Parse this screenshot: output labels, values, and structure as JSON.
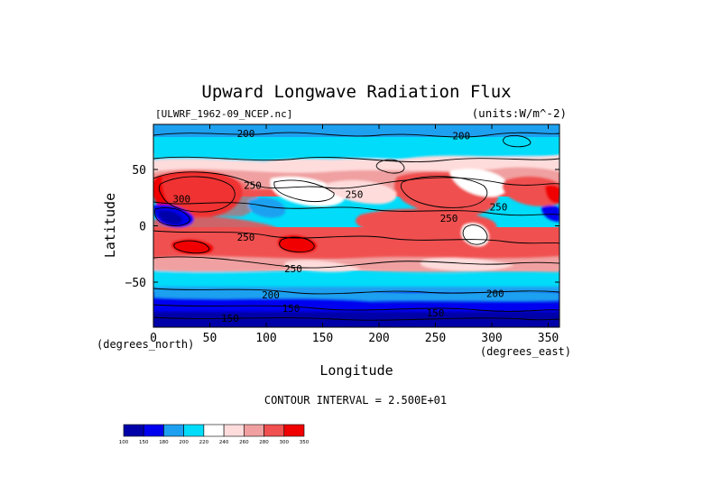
{
  "chart_data": {
    "type": "heatmap",
    "title": "Upward Longwave Radiation Flux",
    "subtitle_left": "[ULWRF_1962-09_NCEP.nc]",
    "subtitle_right": "(units:W/m^-2)",
    "xlabel": "Longitude",
    "ylabel": "Latitude",
    "x_units": "(degrees_east)",
    "y_units": "(degrees_north)",
    "xlim": [
      0,
      360
    ],
    "ylim": [
      -90,
      90
    ],
    "x_ticks": [
      0,
      50,
      100,
      150,
      200,
      250,
      300,
      350
    ],
    "x_tick_labels": [
      "0",
      "50",
      "100",
      "150",
      "200",
      "250",
      "300",
      "350"
    ],
    "y_ticks": [
      50,
      0,
      -50
    ],
    "y_tick_labels": [
      "50",
      "0",
      "−50"
    ],
    "contour_interval_text": "CONTOUR INTERVAL = 2.500E+01",
    "contour_labels": [
      {
        "lon": 82,
        "lat": 82,
        "text": "200"
      },
      {
        "lon": 273,
        "lat": 80,
        "text": "200"
      },
      {
        "lon": 88,
        "lat": 36,
        "text": "250"
      },
      {
        "lon": 25,
        "lat": 24,
        "text": "300"
      },
      {
        "lon": 178,
        "lat": 28,
        "text": "250"
      },
      {
        "lon": 262,
        "lat": 7,
        "text": "250"
      },
      {
        "lon": 306,
        "lat": 17,
        "text": "250"
      },
      {
        "lon": 82,
        "lat": -10,
        "text": "250"
      },
      {
        "lon": 124,
        "lat": -38,
        "text": "250"
      },
      {
        "lon": 104,
        "lat": -61,
        "text": "200"
      },
      {
        "lon": 303,
        "lat": -60,
        "text": "200"
      },
      {
        "lon": 122,
        "lat": -73,
        "text": "150"
      },
      {
        "lon": 250,
        "lat": -77,
        "text": "150"
      },
      {
        "lon": 68,
        "lat": -82,
        "text": "150"
      }
    ],
    "colorbar": {
      "levels": [
        "100",
        "150",
        "180",
        "200",
        "220",
        "240",
        "260",
        "280",
        "300",
        "350"
      ],
      "colors": [
        "#0000a8",
        "#0000f0",
        "#1ea0f0",
        "#00dcfa",
        "#ffffff",
        "#ffdcdc",
        "#f0a0a0",
        "#f05050",
        "#f00000"
      ]
    }
  }
}
